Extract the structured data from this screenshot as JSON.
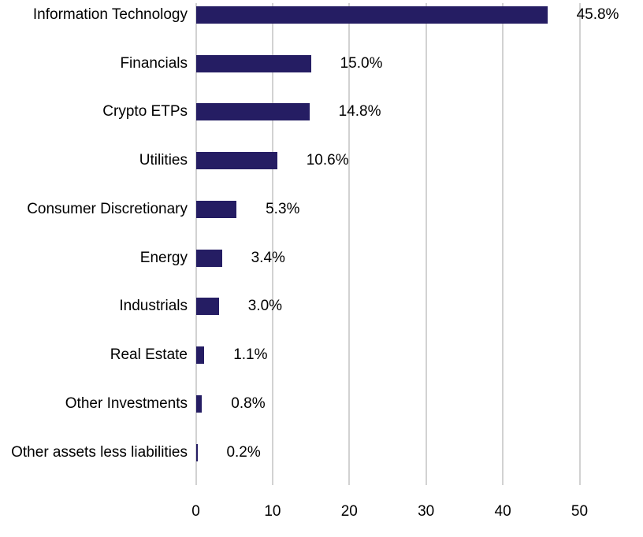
{
  "chart_data": {
    "type": "bar",
    "orientation": "horizontal",
    "title": "",
    "categories": [
      "Information Technology",
      "Financials",
      "Crypto ETPs",
      "Utilities",
      "Consumer Discretionary",
      "Energy",
      "Industrials",
      "Real Estate",
      "Other Investments",
      "Other assets less liabilities"
    ],
    "values": [
      45.8,
      15.0,
      14.8,
      10.6,
      5.3,
      3.4,
      3.0,
      1.1,
      0.8,
      0.2
    ],
    "value_labels": [
      "45.8%",
      "15.0%",
      "14.8%",
      "10.6%",
      "5.3%",
      "3.4%",
      "3.0%",
      "1.1%",
      "0.8%",
      "0.2%"
    ],
    "xlabel": "",
    "ylabel": "",
    "x_ticks": [
      "0",
      "10",
      "20",
      "30",
      "40",
      "50"
    ],
    "x_tick_values": [
      0,
      10,
      20,
      30,
      40,
      50
    ],
    "xlim": [
      0,
      52
    ],
    "grid": true,
    "gridline_axis": "x",
    "legend": "none",
    "colors": {
      "bar": "#251d63",
      "gridline": "#d2d2d2",
      "text": "#000000",
      "background": "#ffffff"
    }
  }
}
